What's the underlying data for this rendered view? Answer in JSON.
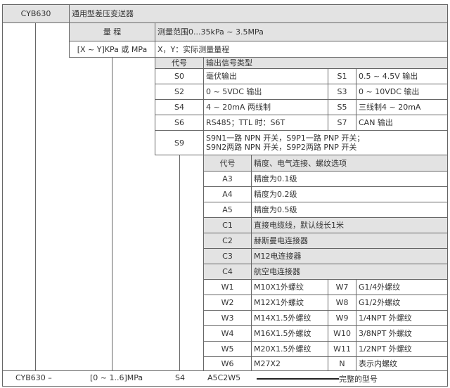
{
  "header": {
    "model": "CYB630",
    "name": "通用型差压变送器"
  },
  "range": {
    "label": "量 程",
    "desc": "测量范围0...35kPa ~ 3.5MPa",
    "format": "[X ~ Y]KPa 或 MPa",
    "format_desc": "X，Y：实际测量量程"
  },
  "output": {
    "code_header": "代号",
    "title": "输出信号类型",
    "rows": [
      [
        "S0",
        "毫伏输出",
        "S1",
        "0.5 ~ 4.5V 输出"
      ],
      [
        "S2",
        "0 ~ 5VDC 输出",
        "S3",
        "0 ~ 10VDC 输出"
      ],
      [
        "S4",
        "4 ~ 20mA  两线制",
        "S5",
        "三线制4 ~ 20mA"
      ],
      [
        "S6",
        "RS485；TTL 时：S6T",
        "S7",
        "CAN 输出"
      ]
    ],
    "s9": {
      "code": "S9",
      "line1": "S9N1一路 NPN 开关，S9P1一路 PNP 开关；",
      "line2": "S9N2两路 NPN 开关，S9P2两路 PNP 开关"
    }
  },
  "options": {
    "code_header": "代号",
    "title": "精度、电气连接、螺纹选项",
    "single": [
      [
        "A3",
        "精度为0.1级"
      ],
      [
        "A4",
        "精度为0.2级"
      ],
      [
        "A5",
        "精度为0.5级"
      ],
      [
        "C1",
        "直接电缆线，默认线长1米"
      ],
      [
        "C2",
        "赫斯曼电连接器"
      ],
      [
        "C3",
        "M12电连接器"
      ],
      [
        "C4",
        "航空电连接器"
      ]
    ],
    "thread": [
      [
        "W1",
        "M10X1外螺纹",
        "W7",
        "G1/4外螺纹"
      ],
      [
        "W2",
        "M12X1外螺纹",
        "W8",
        "G1/2外螺纹"
      ],
      [
        "W3",
        "M14X1.5外螺纹",
        "W9",
        "1/4NPT 外螺纹"
      ],
      [
        "W4",
        "M16X1.5外螺纹",
        "W10",
        "3/8NPT 外螺纹"
      ],
      [
        "W5",
        "M20X1.5外螺纹",
        "W11",
        "1/2NPT 外螺纹"
      ],
      [
        "W6",
        "M27X2",
        "N",
        " 表示内螺纹"
      ]
    ]
  },
  "example": {
    "model": "CYB630 –",
    "range": "[0 ~ 1..6]MPa",
    "output": "S4",
    "options": "A5C2W5",
    "caption": "完整的型号"
  }
}
